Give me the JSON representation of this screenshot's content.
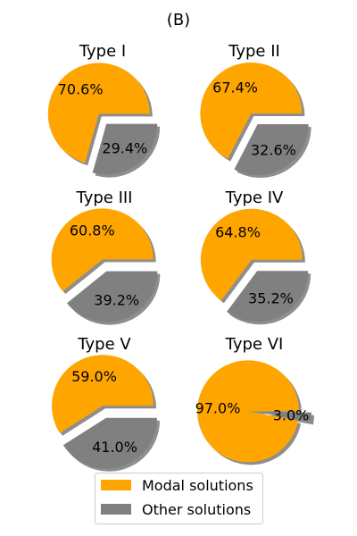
{
  "figure": {
    "title": "(B)"
  },
  "chart_data": [
    {
      "type": "pie",
      "title": "Type I",
      "labels": [
        "Modal solutions",
        "Other solutions"
      ],
      "values": [
        70.6,
        29.4
      ]
    },
    {
      "type": "pie",
      "title": "Type II",
      "labels": [
        "Modal solutions",
        "Other solutions"
      ],
      "values": [
        67.4,
        32.6
      ]
    },
    {
      "type": "pie",
      "title": "Type III",
      "labels": [
        "Modal solutions",
        "Other solutions"
      ],
      "values": [
        60.8,
        39.2
      ]
    },
    {
      "type": "pie",
      "title": "Type IV",
      "labels": [
        "Modal solutions",
        "Other solutions"
      ],
      "values": [
        64.8,
        35.2
      ]
    },
    {
      "type": "pie",
      "title": "Type V",
      "labels": [
        "Modal solutions",
        "Other solutions"
      ],
      "values": [
        59.0,
        41.0
      ]
    },
    {
      "type": "pie",
      "title": "Type VI",
      "labels": [
        "Modal solutions",
        "Other solutions"
      ],
      "values": [
        97.0,
        3.0
      ]
    }
  ],
  "legend": {
    "placement": "bottom-center",
    "items": [
      {
        "label": "Modal solutions",
        "color": "#FFA500"
      },
      {
        "label": "Other solutions",
        "color": "#808080"
      }
    ]
  },
  "colors": {
    "modal": "#FFA500",
    "other": "#808080",
    "shadow": "#7a7a7a"
  }
}
